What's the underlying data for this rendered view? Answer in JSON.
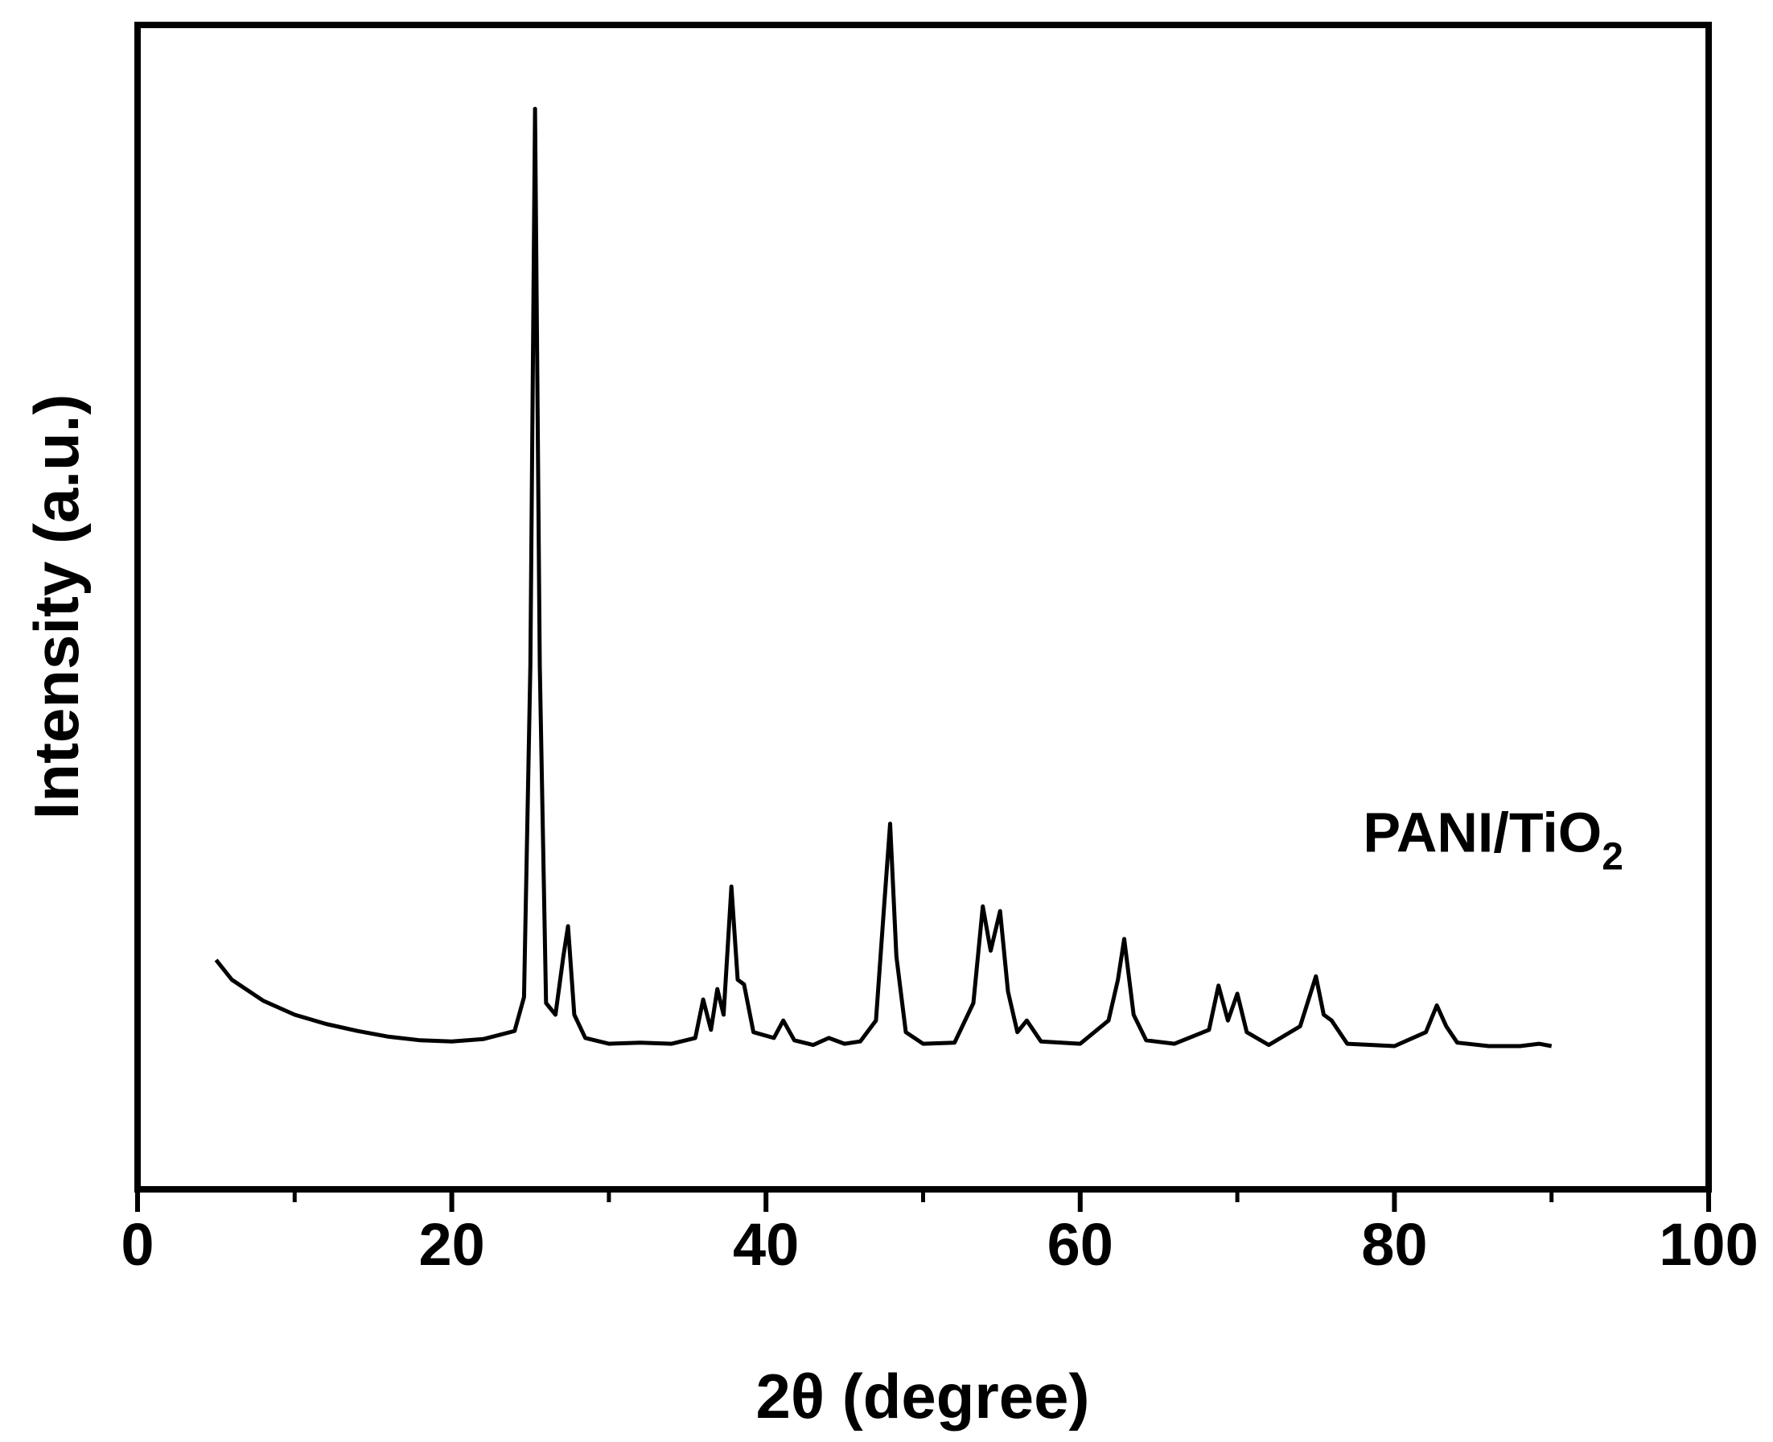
{
  "chart_data": {
    "type": "line",
    "title": "",
    "xlabel": "2θ (degree)",
    "ylabel": "Intensity (a.u.)",
    "xlim": [
      0,
      100
    ],
    "ylim": [
      0,
      1
    ],
    "x_ticks": [
      0,
      20,
      40,
      60,
      80,
      100
    ],
    "x_minor_ticks": [
      10,
      30,
      50,
      70,
      90
    ],
    "y_tick_labels_shown": false,
    "grid": false,
    "legend": "none",
    "line_color": "#000000",
    "annotation": {
      "text": "PANI/TiO",
      "subscript": "2",
      "x": 78,
      "y": 0.29
    },
    "series": [
      {
        "x": [
          5,
          6,
          7,
          8,
          10,
          12,
          14,
          16,
          18,
          20,
          22,
          24,
          24.6,
          25.0,
          25.3,
          25.6,
          26.0,
          26.6,
          27.1,
          27.4,
          27.8,
          28.5,
          30,
          32,
          34,
          35.5,
          36.0,
          36.5,
          36.9,
          37.3,
          37.8,
          38.2,
          38.6,
          39.2,
          40.5,
          41.1,
          41.8,
          43,
          44,
          45,
          46,
          47.0,
          47.5,
          47.9,
          48.3,
          48.9,
          50,
          52,
          53.2,
          53.8,
          54.3,
          54.9,
          55.4,
          56.0,
          56.6,
          57.5,
          60,
          61.8,
          62.4,
          62.8,
          63.4,
          64.2,
          66,
          68.2,
          68.8,
          69.4,
          70.0,
          70.6,
          72,
          74.0,
          75.0,
          75.5,
          76.0,
          77,
          80,
          82.0,
          82.7,
          83.3,
          84,
          86,
          88,
          89.2,
          90
        ],
        "y": [
          0.197,
          0.18,
          0.171,
          0.162,
          0.15,
          0.142,
          0.136,
          0.131,
          0.128,
          0.127,
          0.129,
          0.136,
          0.165,
          0.45,
          0.928,
          0.45,
          0.16,
          0.15,
          0.2,
          0.226,
          0.15,
          0.13,
          0.125,
          0.126,
          0.125,
          0.13,
          0.163,
          0.137,
          0.172,
          0.15,
          0.26,
          0.18,
          0.176,
          0.135,
          0.13,
          0.145,
          0.128,
          0.124,
          0.13,
          0.125,
          0.127,
          0.145,
          0.24,
          0.314,
          0.2,
          0.135,
          0.125,
          0.126,
          0.16,
          0.243,
          0.205,
          0.239,
          0.17,
          0.135,
          0.145,
          0.127,
          0.125,
          0.145,
          0.18,
          0.215,
          0.15,
          0.128,
          0.125,
          0.137,
          0.175,
          0.145,
          0.168,
          0.135,
          0.124,
          0.14,
          0.183,
          0.15,
          0.145,
          0.125,
          0.123,
          0.135,
          0.158,
          0.14,
          0.126,
          0.123,
          0.123,
          0.125,
          0.123
        ]
      }
    ]
  }
}
